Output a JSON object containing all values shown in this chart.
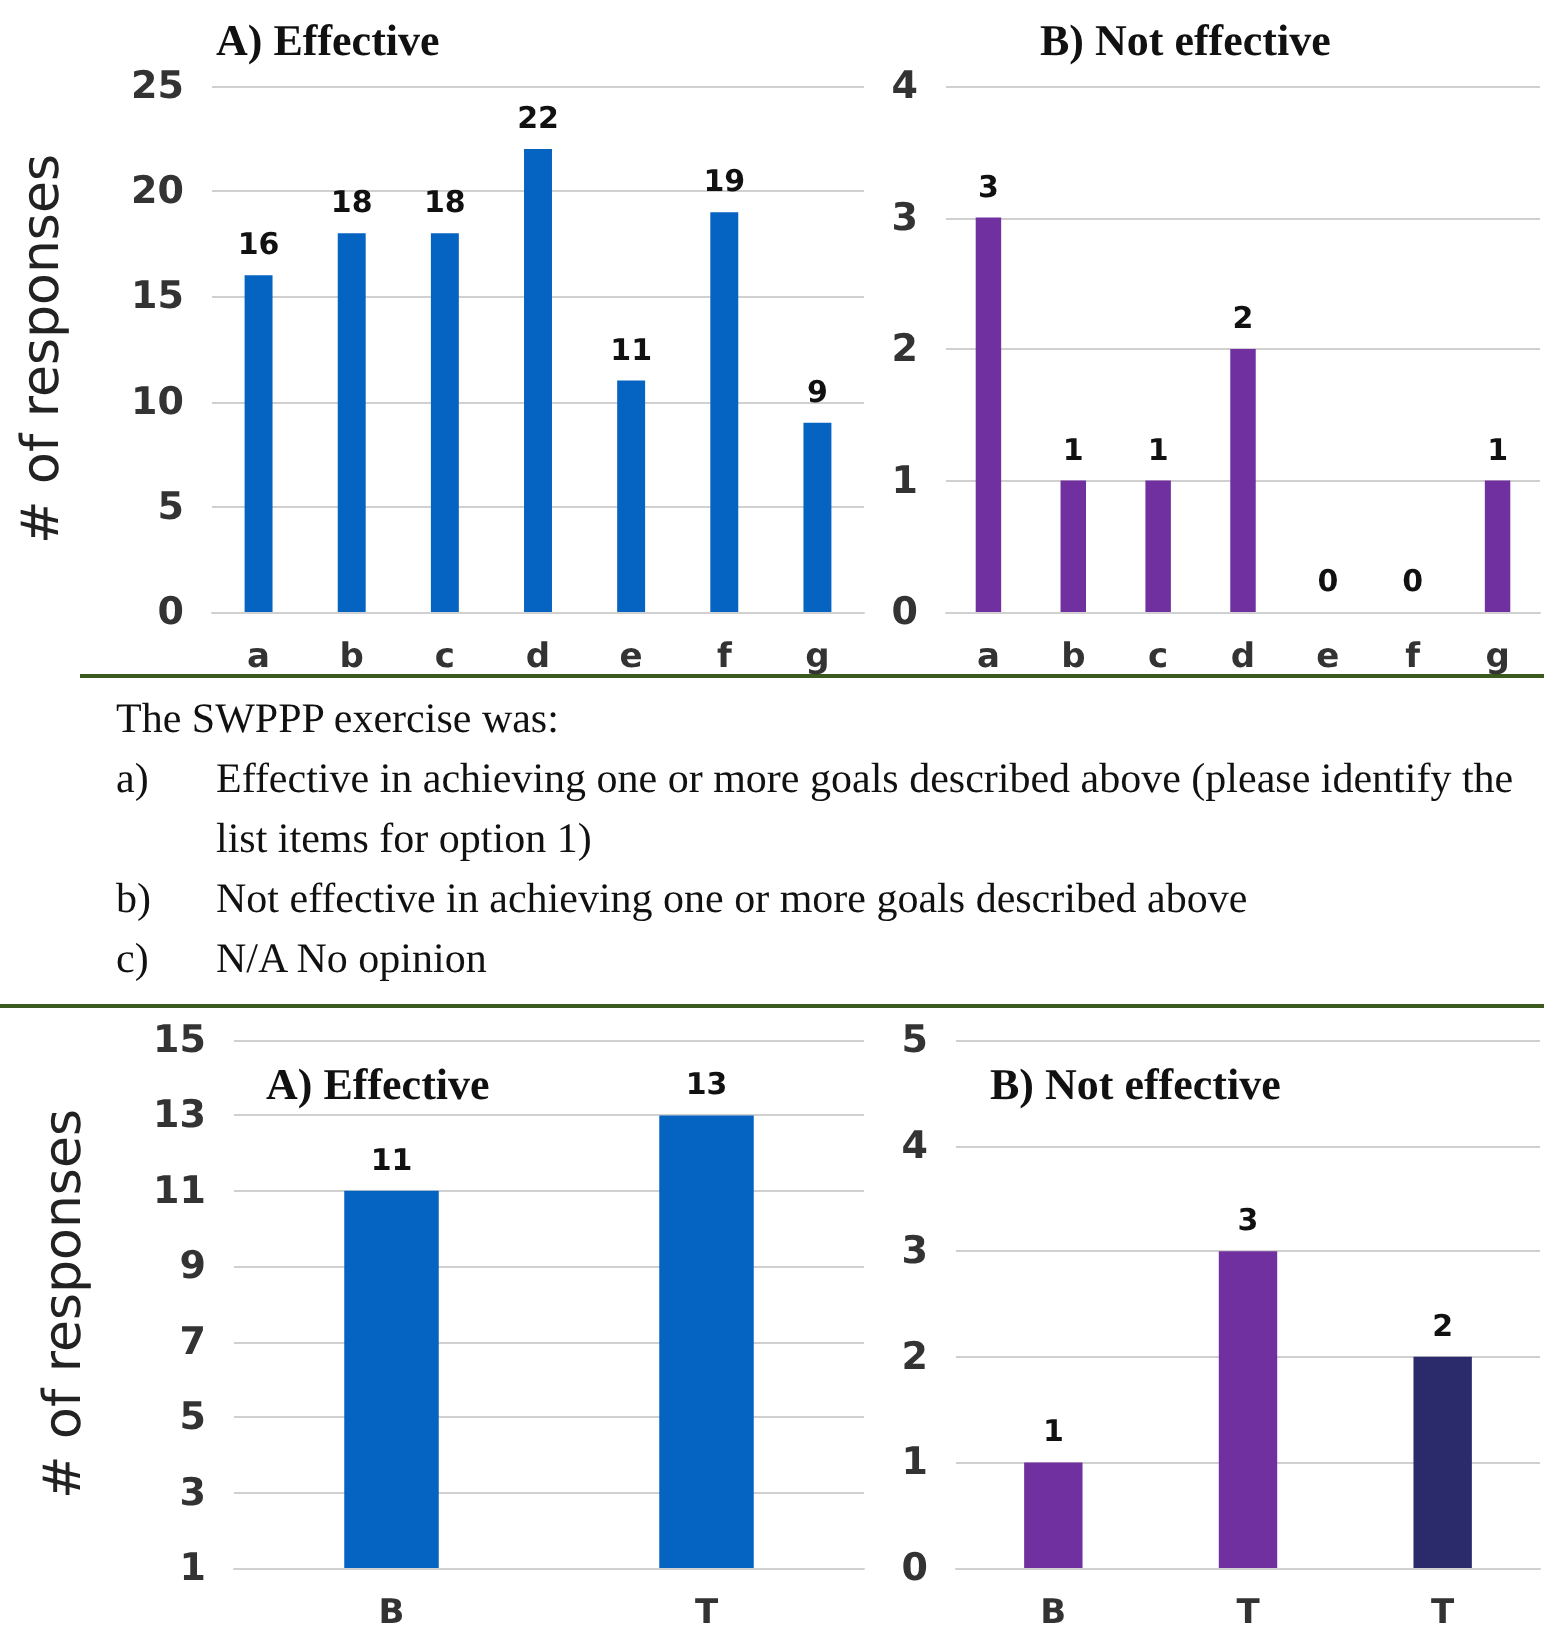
{
  "chart_data": [
    {
      "type": "bar",
      "title": "A) Effective",
      "ylabel": "# of responses",
      "categories": [
        "a",
        "b",
        "c",
        "d",
        "e",
        "f",
        "g"
      ],
      "values": [
        16,
        18,
        18,
        22,
        11,
        19,
        9
      ],
      "color": "#0563c1",
      "ylim": [
        0,
        25
      ],
      "yticks": [
        0,
        5,
        10,
        15,
        20,
        25
      ],
      "grid": "y",
      "data_labels": true
    },
    {
      "type": "bar",
      "title": "B) Not effective",
      "categories": [
        "a",
        "b",
        "c",
        "d",
        "e",
        "f",
        "g"
      ],
      "values": [
        3,
        1,
        1,
        2,
        0,
        0,
        1
      ],
      "color": "#7030a0",
      "ylim": [
        0,
        4
      ],
      "yticks": [
        0,
        1,
        2,
        3,
        4
      ],
      "grid": "y",
      "data_labels": true
    },
    {
      "type": "other",
      "title": "The SWPPP exercise was:",
      "annotations": [
        "a) Effective in achieving one or more goals described above (please identify the list items for option 1)",
        "b) Not effective in achieving one or more goals described above",
        "c) N/A No opinion"
      ]
    },
    {
      "type": "bar",
      "title": "A) Effective",
      "ylabel": "# of responses",
      "categories": [
        "B",
        "T"
      ],
      "values": [
        11,
        13
      ],
      "color": "#0563c1",
      "ylim": [
        1,
        15
      ],
      "yticks": [
        1,
        3,
        5,
        7,
        9,
        11,
        13,
        15
      ],
      "grid": "y",
      "data_labels": true
    },
    {
      "type": "bar",
      "title": "B) Not effective",
      "categories": [
        "B",
        "T",
        "T"
      ],
      "values": [
        1,
        3,
        2
      ],
      "colors": [
        "#7030a0",
        "#7030a0",
        "#2b2a6b"
      ],
      "ylim": [
        0,
        5
      ],
      "yticks": [
        0,
        1,
        2,
        3,
        4,
        5
      ],
      "grid": "y",
      "data_labels": true
    }
  ]
}
